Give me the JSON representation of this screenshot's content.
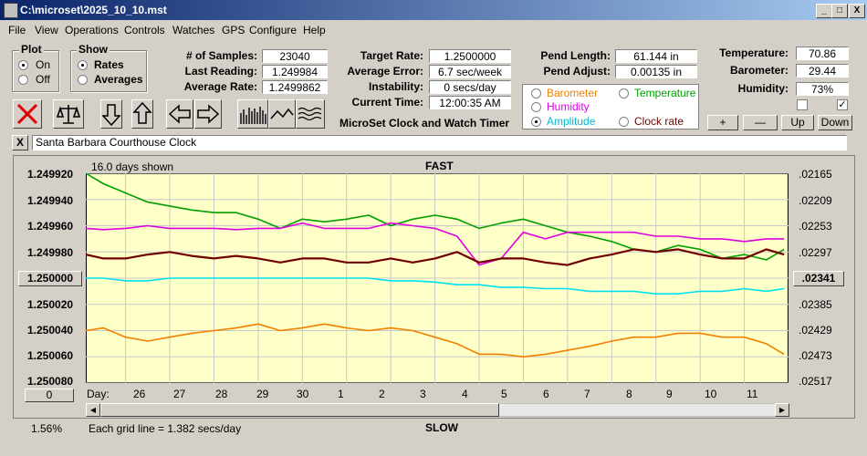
{
  "window": {
    "title": "C:\\microset\\2025_10_10.mst",
    "min": "_",
    "max": "□",
    "close": "X"
  },
  "menu": [
    "File",
    "View",
    "Operations",
    "Controls",
    "Watches",
    "GPS",
    "Configure",
    "Help"
  ],
  "plot_group": {
    "title": "Plot",
    "on": "On",
    "off": "Off",
    "selected": "On"
  },
  "show_group": {
    "title": "Show",
    "rates": "Rates",
    "averages": "Averages",
    "selected": "Rates"
  },
  "stats": {
    "samples_label": "# of Samples:",
    "samples": "23040",
    "last_reading_label": "Last Reading:",
    "last_reading": "1.249984",
    "avg_rate_label": "Average Rate:",
    "avg_rate": "1.2499862"
  },
  "targets": {
    "target_label": "Target Rate:",
    "target": "1.2500000",
    "avg_error_label": "Average Error:",
    "avg_error": "6.7 sec/week",
    "instability_label": "Instability:",
    "instability": "0 secs/day",
    "current_time_label": "Current Time:",
    "current_time": "12:00:35 AM"
  },
  "pend": {
    "length_label": "Pend Length:",
    "length": "61.144 in",
    "adjust_label": "Pend Adjust:",
    "adjust": "0.00135 in"
  },
  "env": {
    "temp_label": "Temperature:",
    "temp": "70.86",
    "baro_label": "Barometer:",
    "baro": "29.44",
    "hum_label": "Humidity:",
    "hum": "73%"
  },
  "series_select": {
    "barometer": "Barometer",
    "temperature": "Temperature",
    "humidity": "Humidity",
    "amplitude": "Amplitude",
    "clock_rate": "Clock rate",
    "selected": "Amplitude"
  },
  "app_title": "MicroSet Clock and Watch Timer",
  "small_buttons": {
    "plus": "+",
    "minus": "—",
    "up": "Up",
    "down": "Down"
  },
  "clock_name": "Santa Barbara Courthouse Clock",
  "clear_button": "X",
  "chart_data": {
    "type": "line",
    "top_label": "FAST",
    "bottom_label": "SLOW",
    "days_shown": "16.0 days shown",
    "grid_note": "Each grid line = 1.382 secs/day",
    "percent": "1.56%",
    "zero_button": "0",
    "center_value": "1.250000",
    "center_right": ".02341",
    "day_label": "Day:",
    "days": [
      "26",
      "27",
      "28",
      "29",
      "30",
      "1",
      "2",
      "3",
      "4",
      "5",
      "6",
      "7",
      "8",
      "9",
      "10",
      "11"
    ],
    "left_ticks": [
      "1.249920",
      "1.249940",
      "1.249960",
      "1.249980",
      "1.250000",
      "1.250020",
      "1.250040",
      "1.250060",
      "1.250080"
    ],
    "right_ticks": [
      ".02165",
      ".02209",
      ".02253",
      ".02297",
      ".02341",
      ".02385",
      ".02429",
      ".02473",
      ".02517"
    ],
    "ylim": [
      1.24992,
      1.25008
    ],
    "xlim": [
      25.1,
      41
    ],
    "colors": {
      "amplitude": "#00e0f0",
      "temperature": "#00a000",
      "humidity": "#e000e0",
      "clock_rate": "#700000",
      "barometer": "#f08000"
    },
    "series": [
      {
        "name": "Temperature",
        "color": "#00a000",
        "x": [
          25.1,
          25.5,
          26,
          26.5,
          27,
          27.5,
          28,
          28.5,
          29,
          29.5,
          30,
          30.5,
          31,
          31.5,
          32,
          32.5,
          33,
          33.5,
          34,
          34.5,
          35,
          35.5,
          36,
          36.5,
          37,
          37.5,
          38,
          38.5,
          39,
          39.5,
          40,
          40.5,
          40.9
        ],
        "y": [
          1.24992,
          1.249928,
          1.249935,
          1.249942,
          1.249945,
          1.249948,
          1.24995,
          1.24995,
          1.249955,
          1.249962,
          1.249955,
          1.249957,
          1.249955,
          1.249952,
          1.24996,
          1.249955,
          1.249952,
          1.249955,
          1.249962,
          1.249958,
          1.249955,
          1.24996,
          1.249965,
          1.249968,
          1.249972,
          1.249978,
          1.24998,
          1.249975,
          1.249978,
          1.249985,
          1.249982,
          1.249986,
          1.249978
        ]
      },
      {
        "name": "Humidity",
        "color": "#e000e0",
        "x": [
          25.1,
          25.5,
          26,
          26.5,
          27,
          27.5,
          28,
          28.5,
          29,
          29.5,
          30,
          30.5,
          31,
          31.5,
          32,
          32.5,
          33,
          33.5,
          34,
          34.5,
          35,
          35.5,
          36,
          36.5,
          37,
          37.5,
          38,
          38.5,
          39,
          39.5,
          40,
          40.5,
          40.9
        ],
        "y": [
          1.249962,
          1.249963,
          1.249962,
          1.24996,
          1.249962,
          1.249962,
          1.249962,
          1.249963,
          1.249962,
          1.249962,
          1.249958,
          1.249962,
          1.249962,
          1.249962,
          1.249958,
          1.24996,
          1.249962,
          1.249968,
          1.24999,
          1.249985,
          1.249965,
          1.24997,
          1.249965,
          1.249965,
          1.249965,
          1.249965,
          1.249968,
          1.249968,
          1.24997,
          1.24997,
          1.249972,
          1.24997,
          1.24997
        ]
      },
      {
        "name": "Clock rate",
        "color": "#700000",
        "x": [
          25.1,
          25.5,
          26,
          26.5,
          27,
          27.5,
          28,
          28.5,
          29,
          29.5,
          30,
          30.5,
          31,
          31.5,
          32,
          32.5,
          33,
          33.5,
          34,
          34.5,
          35,
          35.5,
          36,
          36.5,
          37,
          37.5,
          38,
          38.5,
          39,
          39.5,
          40,
          40.5,
          40.9
        ],
        "y": [
          1.249982,
          1.249985,
          1.249985,
          1.249982,
          1.24998,
          1.249983,
          1.249985,
          1.249983,
          1.249985,
          1.249988,
          1.249985,
          1.249985,
          1.249988,
          1.249988,
          1.249985,
          1.249988,
          1.249985,
          1.24998,
          1.249988,
          1.249985,
          1.249985,
          1.249988,
          1.24999,
          1.249985,
          1.249982,
          1.249978,
          1.24998,
          1.249978,
          1.249982,
          1.249985,
          1.249985,
          1.249978,
          1.249982
        ]
      },
      {
        "name": "Amplitude",
        "color": "#00e0f0",
        "x": [
          25.1,
          25.5,
          26,
          26.5,
          27,
          27.5,
          28,
          28.5,
          29,
          29.5,
          30,
          30.5,
          31,
          31.5,
          32,
          32.5,
          33,
          33.5,
          34,
          34.5,
          35,
          35.5,
          36,
          36.5,
          37,
          37.5,
          38,
          38.5,
          39,
          39.5,
          40,
          40.5,
          40.9
        ],
        "y": [
          1.25,
          1.25,
          1.250002,
          1.250002,
          1.25,
          1.25,
          1.25,
          1.25,
          1.25,
          1.25,
          1.25,
          1.25,
          1.25,
          1.25,
          1.250002,
          1.250002,
          1.250003,
          1.250005,
          1.250005,
          1.250007,
          1.250007,
          1.250008,
          1.250008,
          1.25001,
          1.25001,
          1.25001,
          1.250012,
          1.250012,
          1.25001,
          1.25001,
          1.250008,
          1.25001,
          1.250008
        ]
      },
      {
        "name": "Barometer",
        "color": "#f08000",
        "x": [
          25.1,
          25.5,
          26,
          26.5,
          27,
          27.5,
          28,
          28.5,
          29,
          29.5,
          30,
          30.5,
          31,
          31.5,
          32,
          32.5,
          33,
          33.5,
          34,
          34.5,
          35,
          35.5,
          36,
          36.5,
          37,
          37.5,
          38,
          38.5,
          39,
          39.5,
          40,
          40.5,
          40.9
        ],
        "y": [
          1.25004,
          1.250038,
          1.250045,
          1.250048,
          1.250045,
          1.250042,
          1.25004,
          1.250038,
          1.250035,
          1.25004,
          1.250038,
          1.250035,
          1.250038,
          1.25004,
          1.250038,
          1.25004,
          1.250045,
          1.25005,
          1.250058,
          1.250058,
          1.25006,
          1.250058,
          1.250055,
          1.250052,
          1.250048,
          1.250045,
          1.250045,
          1.250042,
          1.250042,
          1.250045,
          1.250045,
          1.25005,
          1.250058
        ]
      }
    ]
  }
}
